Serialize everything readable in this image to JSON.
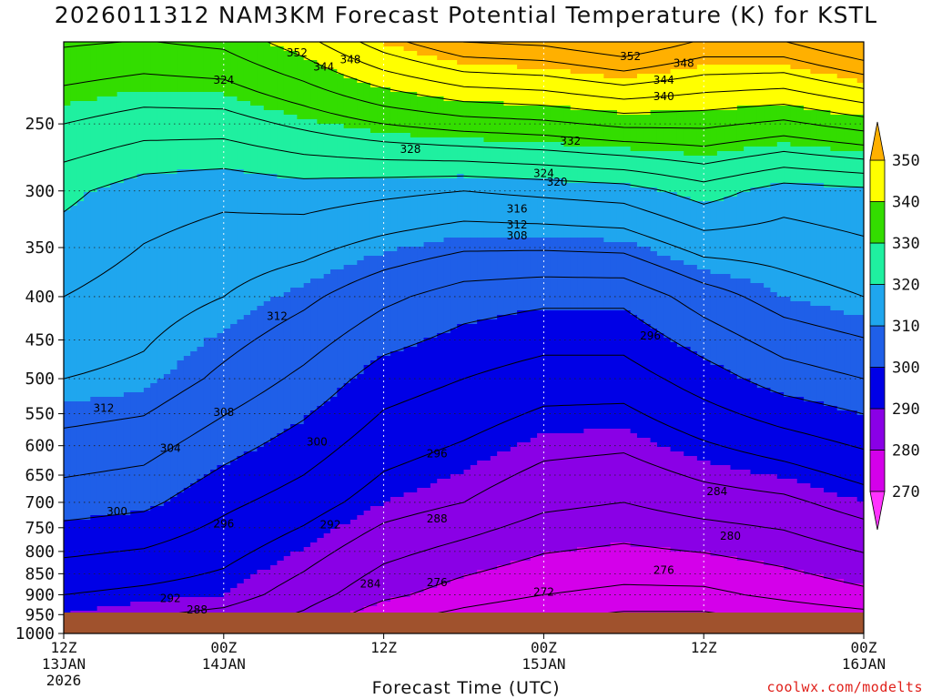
{
  "title": "2026011312 NAM3KM Forecast Potential Temperature (K) for KSTL",
  "xlabel": "Forecast Time (UTC)",
  "credit": "coolwx.com/modelts",
  "chart_data": {
    "type": "heatmap",
    "title": "2026011312 NAM3KM Forecast Potential Temperature (K) for KSTL",
    "xlabel": "Forecast Time (UTC)",
    "ylabel": "",
    "x_ticks": [
      {
        "hour": 0,
        "lines": [
          "12Z",
          "13JAN",
          "2026"
        ]
      },
      {
        "hour": 12,
        "lines": [
          "00Z",
          "14JAN"
        ]
      },
      {
        "hour": 24,
        "lines": [
          "12Z"
        ]
      },
      {
        "hour": 36,
        "lines": [
          "00Z",
          "15JAN"
        ]
      },
      {
        "hour": 48,
        "lines": [
          "12Z"
        ]
      },
      {
        "hour": 60,
        "lines": [
          "00Z",
          "16JAN"
        ]
      }
    ],
    "xlim": [
      0,
      60
    ],
    "y_ticks": [
      250,
      300,
      350,
      400,
      450,
      500,
      550,
      600,
      650,
      700,
      750,
      800,
      850,
      900,
      950,
      1000
    ],
    "ylim": [
      1000,
      200
    ],
    "y_scale": "log-pressure",
    "colorbar": {
      "ticks": [
        270,
        280,
        290,
        300,
        310,
        320,
        330,
        340,
        350
      ],
      "bands": [
        {
          "from": 260,
          "to": 270,
          "color": "#ff33ff"
        },
        {
          "from": 270,
          "to": 280,
          "color": "#d400ea"
        },
        {
          "from": 280,
          "to": 290,
          "color": "#8a00e6"
        },
        {
          "from": 290,
          "to": 300,
          "color": "#0000e6"
        },
        {
          "from": 300,
          "to": 310,
          "color": "#1f5fe8"
        },
        {
          "from": 310,
          "to": 320,
          "color": "#1fa6ee"
        },
        {
          "from": 320,
          "to": 330,
          "color": "#1ff0a0"
        },
        {
          "from": 330,
          "to": 340,
          "color": "#33dd00"
        },
        {
          "from": 340,
          "to": 350,
          "color": "#ffff00"
        },
        {
          "from": 350,
          "to": 360,
          "color": "#ffb000"
        }
      ]
    },
    "ground_color": "#a0522d",
    "contour_interval": 4,
    "columns": [
      {
        "hour": 0,
        "pressures": [
          1000,
          900,
          700,
          500,
          400,
          300,
          250
        ],
        "theta": [
          288,
          292,
          302,
          312,
          316,
          321,
          328
        ]
      },
      {
        "hour": 6,
        "pressures": [
          1000,
          900,
          700,
          500,
          400,
          300,
          250
        ],
        "theta": [
          286,
          291,
          301,
          311,
          314,
          318,
          326
        ]
      },
      {
        "hour": 12,
        "pressures": [
          1000,
          900,
          700,
          500,
          400,
          300,
          250
        ],
        "theta": [
          284,
          290,
          297,
          307,
          312,
          317,
          326
        ]
      },
      {
        "hour": 18,
        "pressures": [
          1000,
          900,
          700,
          500,
          400,
          300,
          250
        ],
        "theta": [
          281,
          286,
          294,
          303,
          309,
          318,
          329
        ]
      },
      {
        "hour": 24,
        "pressures": [
          1000,
          900,
          700,
          500,
          400,
          300,
          250
        ],
        "theta": [
          274,
          281,
          290,
          298,
          305,
          317,
          332
        ]
      },
      {
        "hour": 30,
        "pressures": [
          1000,
          900,
          700,
          500,
          400,
          300,
          250
        ],
        "theta": [
          272,
          278,
          288,
          296,
          302,
          316,
          334
        ]
      },
      {
        "hour": 36,
        "pressures": [
          1000,
          900,
          700,
          500,
          400,
          300,
          250
        ],
        "theta": [
          270,
          276,
          285,
          294,
          301,
          317,
          335
        ]
      },
      {
        "hour": 42,
        "pressures": [
          1000,
          900,
          700,
          500,
          400,
          300,
          250
        ],
        "theta": [
          268,
          275,
          284,
          294,
          301,
          318,
          337
        ]
      },
      {
        "hour": 48,
        "pressures": [
          1000,
          900,
          700,
          500,
          400,
          300,
          250
        ],
        "theta": [
          268,
          275,
          286,
          298,
          306,
          322,
          337
        ]
      },
      {
        "hour": 54,
        "pressures": [
          1000,
          900,
          700,
          500,
          400,
          300,
          250
        ],
        "theta": [
          270,
          277,
          287,
          302,
          310,
          318,
          335
        ]
      },
      {
        "hour": 60,
        "pressures": [
          1000,
          900,
          700,
          500,
          400,
          300,
          250
        ],
        "theta": [
          271,
          279,
          290,
          304,
          312,
          319,
          338
        ]
      }
    ],
    "contour_labels": [
      {
        "text": "352",
        "hour": 17.5,
        "p": 206
      },
      {
        "text": "348",
        "hour": 21.5,
        "p": 210
      },
      {
        "text": "344",
        "hour": 19.5,
        "p": 214
      },
      {
        "text": "352",
        "hour": 42.5,
        "p": 208
      },
      {
        "text": "348",
        "hour": 46.5,
        "p": 212
      },
      {
        "text": "344",
        "hour": 45,
        "p": 222
      },
      {
        "text": "340",
        "hour": 45,
        "p": 232
      },
      {
        "text": "324",
        "hour": 12,
        "p": 222
      },
      {
        "text": "328",
        "hour": 26,
        "p": 268
      },
      {
        "text": "332",
        "hour": 38,
        "p": 262
      },
      {
        "text": "324",
        "hour": 36,
        "p": 286
      },
      {
        "text": "320",
        "hour": 37,
        "p": 293
      },
      {
        "text": "316",
        "hour": 34,
        "p": 315
      },
      {
        "text": "312",
        "hour": 34,
        "p": 329
      },
      {
        "text": "308",
        "hour": 34,
        "p": 339
      },
      {
        "text": "312",
        "hour": 16,
        "p": 422
      },
      {
        "text": "312",
        "hour": 3,
        "p": 542
      },
      {
        "text": "308",
        "hour": 12,
        "p": 548
      },
      {
        "text": "304",
        "hour": 8,
        "p": 604
      },
      {
        "text": "300",
        "hour": 19,
        "p": 594
      },
      {
        "text": "296",
        "hour": 28,
        "p": 613
      },
      {
        "text": "296",
        "hour": 44,
        "p": 445
      },
      {
        "text": "300",
        "hour": 4,
        "p": 718
      },
      {
        "text": "296",
        "hour": 12,
        "p": 742
      },
      {
        "text": "292",
        "hour": 20,
        "p": 744
      },
      {
        "text": "288",
        "hour": 28,
        "p": 732
      },
      {
        "text": "284",
        "hour": 49,
        "p": 680
      },
      {
        "text": "280",
        "hour": 50,
        "p": 767
      },
      {
        "text": "276",
        "hour": 45,
        "p": 842
      },
      {
        "text": "284",
        "hour": 23,
        "p": 874
      },
      {
        "text": "276",
        "hour": 28,
        "p": 870
      },
      {
        "text": "272",
        "hour": 36,
        "p": 893
      },
      {
        "text": "292",
        "hour": 8,
        "p": 909
      },
      {
        "text": "288",
        "hour": 10,
        "p": 938
      }
    ]
  }
}
